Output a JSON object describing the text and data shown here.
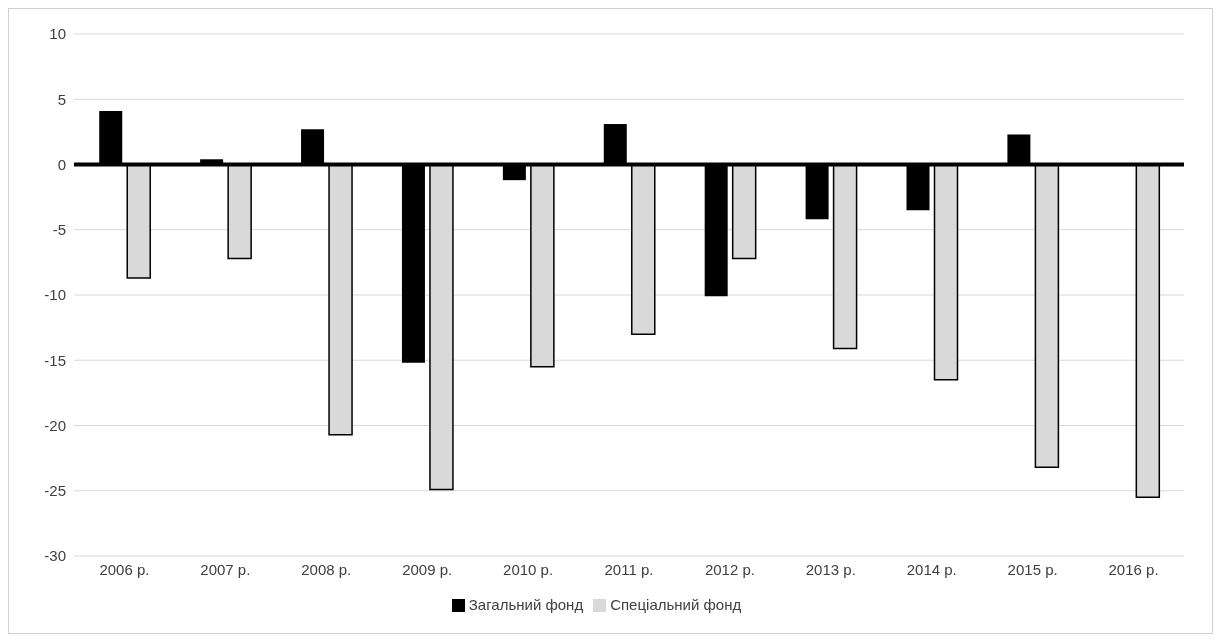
{
  "chart_data": {
    "type": "bar",
    "categories": [
      "2006 р.",
      "2007 р.",
      "2008 р.",
      "2009 р.",
      "2010 р.",
      "2011 р.",
      "2012 р.",
      "2013 р.",
      "2014 р.",
      "2015 р.",
      "2016 р."
    ],
    "series": [
      {
        "name": "Загальний фонд",
        "color": "#000000",
        "values": [
          4.1,
          0.4,
          2.7,
          -15.2,
          -1.2,
          3.1,
          -10.1,
          -4.2,
          -3.5,
          2.3,
          null
        ]
      },
      {
        "name": "Спеціальний фонд",
        "color": "#d9d9d9",
        "values": [
          -8.7,
          -7.2,
          -20.7,
          -24.9,
          -15.5,
          -13.0,
          -7.2,
          -14.1,
          -16.5,
          -23.2,
          -25.5
        ]
      }
    ],
    "ylim": [
      -30,
      10
    ],
    "yticks": [
      -30,
      -25,
      -20,
      -15,
      -10,
      -5,
      0,
      5,
      10
    ],
    "grid": "y",
    "legend": "bottom"
  }
}
